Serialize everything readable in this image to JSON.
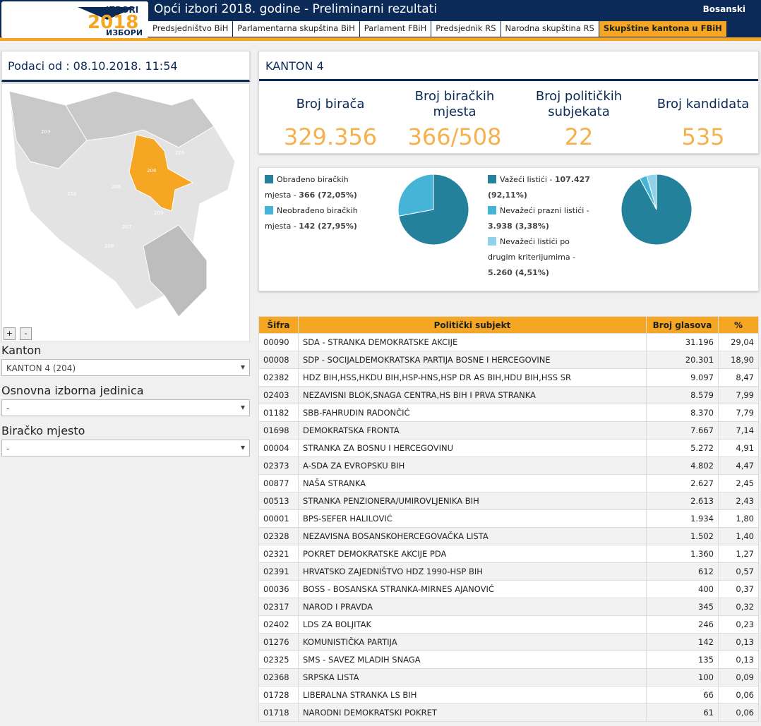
{
  "header": {
    "logo": {
      "top": "IZBORI",
      "year": "2018",
      "bottom": "ИЗБОРИ"
    },
    "title": "Opći izbori 2018. godine - Preliminarni rezultati",
    "language": "Bosanski",
    "tabs": [
      "Predsjedništvo BiH",
      "Parlamentarna skupština BiH",
      "Parlament FBiH",
      "Predsjednik RS",
      "Narodna skupština RS",
      "Skupštine kantona u FBiH"
    ],
    "active_tab": 5
  },
  "left": {
    "date": "Podaci od : 08.10.2018. 11:54",
    "map_labels": [
      "203",
      "205",
      "204",
      "210",
      "206",
      "209",
      "207",
      "208"
    ],
    "zoom_in": "+",
    "zoom_out": "-",
    "filters": [
      {
        "label": "Kanton",
        "value": "KANTON 4 (204)"
      },
      {
        "label": "Osnovna izborna jedinica",
        "value": "-"
      },
      {
        "label": "Biračko mjesto",
        "value": "-"
      }
    ]
  },
  "stats": {
    "title": "KANTON 4",
    "items": [
      {
        "label": "Broj birača",
        "value": "329.356"
      },
      {
        "label": "Broj biračkih mjesta",
        "value": "366/508"
      },
      {
        "label": "Broj političkih subjekata",
        "value": "22"
      },
      {
        "label": "Broj kandidata",
        "value": "535"
      }
    ]
  },
  "pies": [
    {
      "items": [
        {
          "label": "Obrađeno biračkih mjesta - ",
          "value_label": "366 (72,05%)",
          "percent": 72.05,
          "color": "#23819c"
        },
        {
          "label": "Neobrađeno biračkih mjesta - ",
          "value_label": "142 (27,95%)",
          "percent": 27.95,
          "color": "#45b4d6"
        }
      ]
    },
    {
      "items": [
        {
          "label": "Važeći listići - ",
          "value_label": "107.427 (92,11%)",
          "percent": 92.11,
          "color": "#23819c"
        },
        {
          "label": "Nevažeći prazni listići - ",
          "value_label": "3.938 (3,38%)",
          "percent": 3.38,
          "color": "#45b4d6"
        },
        {
          "label": "Nevažeći listići po drugim kriterijumima - ",
          "value_label": "5.260 (4,51%)",
          "percent": 4.51,
          "color": "#8fd3ea"
        }
      ]
    }
  ],
  "table": {
    "columns": [
      "Šifra",
      "Politički subjekt",
      "Broj glasova",
      "%"
    ],
    "rows": [
      [
        "00090",
        "SDA - STRANKA DEMOKRATSKE AKCIJE",
        "31.196",
        "29,04"
      ],
      [
        "00008",
        "SDP - SOCIJALDEMOKRATSKA PARTIJA BOSNE I HERCEGOVINE",
        "20.301",
        "18,90"
      ],
      [
        "02382",
        "HDZ BIH,HSS,HKDU BIH,HSP-HNS,HSP DR AS BIH,HDU BIH,HSS SR",
        "9.097",
        "8,47"
      ],
      [
        "02403",
        "NEZAVISNI BLOK,SNAGA CENTRA,HS BIH I PRVA STRANKA",
        "8.579",
        "7,99"
      ],
      [
        "01182",
        "SBB-FAHRUDIN RADONČIĆ",
        "8.370",
        "7,79"
      ],
      [
        "01698",
        "DEMOKRATSKA FRONTA",
        "7.667",
        "7,14"
      ],
      [
        "00004",
        "STRANKA ZA BOSNU I HERCEGOVINU",
        "5.272",
        "4,91"
      ],
      [
        "02373",
        "A-SDA ZA EVROPSKU BIH",
        "4.802",
        "4,47"
      ],
      [
        "00877",
        "NAŠA STRANKA",
        "2.627",
        "2,45"
      ],
      [
        "00513",
        "STRANKA PENZIONERA/UMIROVLJENIKA BIH",
        "2.613",
        "2,43"
      ],
      [
        "00001",
        "BPS-SEFER HALILOVIĆ",
        "1.934",
        "1,80"
      ],
      [
        "02328",
        "NEZAVISNA BOSANSKOHERCEGOVAČKA LISTA",
        "1.502",
        "1,40"
      ],
      [
        "02321",
        "POKRET DEMOKRATSKE AKCIJE PDA",
        "1.360",
        "1,27"
      ],
      [
        "02391",
        "HRVATSKO ZAJEDNIŠTVO HDZ 1990-HSP BIH",
        "612",
        "0,57"
      ],
      [
        "00036",
        "BOSS - BOSANSKA STRANKA-MIRNES AJANOVIĆ",
        "400",
        "0,37"
      ],
      [
        "02317",
        "NAROD I PRAVDA",
        "345",
        "0,32"
      ],
      [
        "02402",
        "LDS ZA BOLJITAK",
        "246",
        "0,23"
      ],
      [
        "01276",
        "KOMUNISTIČKA PARTIJA",
        "142",
        "0,13"
      ],
      [
        "02325",
        "SMS - SAVEZ MLADIH SNAGA",
        "135",
        "0,13"
      ],
      [
        "02368",
        "SRPSKA LISTA",
        "100",
        "0,09"
      ],
      [
        "01728",
        "LIBERALNA STRANKA LS BIH",
        "66",
        "0,06"
      ],
      [
        "01718",
        "NARODNI DEMOKRATSKI POKRET",
        "61",
        "0,06"
      ]
    ]
  }
}
